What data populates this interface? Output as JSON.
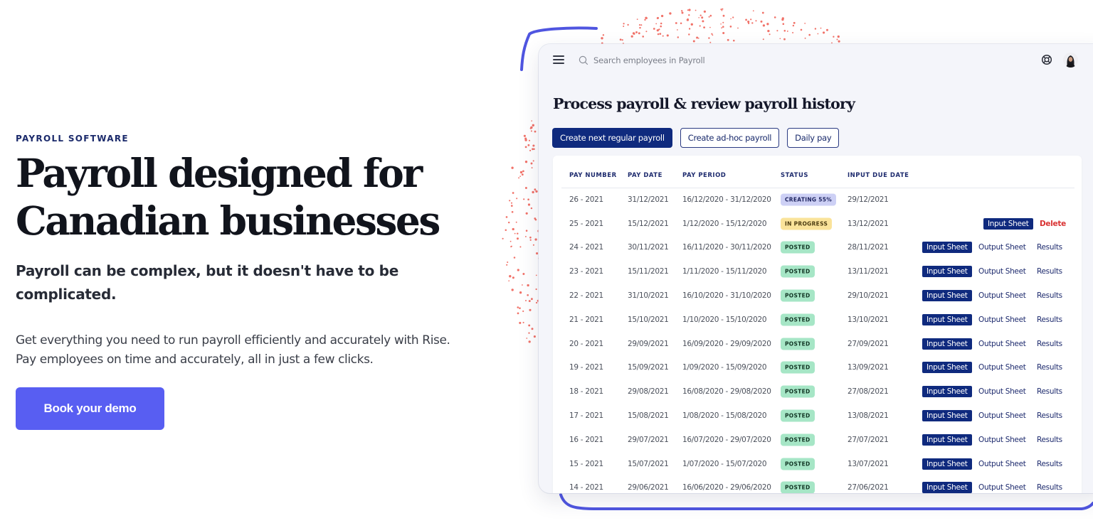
{
  "hero": {
    "eyebrow": "PAYROLL SOFTWARE",
    "headline_line1": "Payroll designed for",
    "headline_line2": "Canadian businesses",
    "subhead": "Payroll can be complex, but it doesn't have to be complicated.",
    "body_line1": "Get everything you need to run payroll efficiently and accurately with Rise.",
    "body_line2": "Pay employees on time and accurately, all in just a few clicks.",
    "cta_label": "Book your demo",
    "cta_color": "#585ef2"
  },
  "app": {
    "topbar": {
      "menu_icon": "hamburger-menu-icon",
      "search_icon": "search-icon",
      "search_placeholder": "Search employees in Payroll",
      "help_icon": "lifebuoy-help-icon",
      "avatar": "user-avatar"
    },
    "page_title": "Process payroll & review payroll history",
    "actions": {
      "create_regular": "Create next regular payroll",
      "create_adhoc": "Create ad-hoc payroll",
      "daily_pay": "Daily pay"
    },
    "table": {
      "headers": {
        "pay_number": "PAY NUMBER",
        "pay_date": "PAY DATE",
        "pay_period": "PAY PERIOD",
        "status": "STATUS",
        "input_due_date": "INPUT DUE DATE"
      },
      "action_labels": {
        "input_sheet": "Input Sheet",
        "output_sheet": "Output Sheet",
        "results": "Results",
        "delete": "Delete"
      },
      "rows": [
        {
          "pay_number": "26 - 2021",
          "pay_date": "31/12/2021",
          "pay_period": "16/12/2020 - 31/12/2020",
          "status": "CREATING 55%",
          "input_due_date": "29/12/2021"
        },
        {
          "pay_number": "25 - 2021",
          "pay_date": "15/12/2021",
          "pay_period": "1/12/2020 - 15/12/2020",
          "status": "IN PROGRESS",
          "input_due_date": "13/12/2021"
        },
        {
          "pay_number": "24 - 2021",
          "pay_date": "30/11/2021",
          "pay_period": "16/11/2020 - 30/11/2020",
          "status": "POSTED",
          "input_due_date": "28/11/2021"
        },
        {
          "pay_number": "23 - 2021",
          "pay_date": "15/11/2021",
          "pay_period": "1/11/2020 - 15/11/2020",
          "status": "POSTED",
          "input_due_date": "13/11/2021"
        },
        {
          "pay_number": "22 - 2021",
          "pay_date": "31/10/2021",
          "pay_period": "16/10/2020 - 31/10/2020",
          "status": "POSTED",
          "input_due_date": "29/10/2021"
        },
        {
          "pay_number": "21 - 2021",
          "pay_date": "15/10/2021",
          "pay_period": "1/10/2020 - 15/10/2020",
          "status": "POSTED",
          "input_due_date": "13/10/2021"
        },
        {
          "pay_number": "20 - 2021",
          "pay_date": "29/09/2021",
          "pay_period": "16/09/2020 - 29/09/2020",
          "status": "POSTED",
          "input_due_date": "27/09/2021"
        },
        {
          "pay_number": "19 - 2021",
          "pay_date": "15/09/2021",
          "pay_period": "1/09/2020 - 15/09/2020",
          "status": "POSTED",
          "input_due_date": "13/09/2021"
        },
        {
          "pay_number": "18 - 2021",
          "pay_date": "29/08/2021",
          "pay_period": "16/08/2020 - 29/08/2020",
          "status": "POSTED",
          "input_due_date": "27/08/2021"
        },
        {
          "pay_number": "17 - 2021",
          "pay_date": "15/08/2021",
          "pay_period": "1/08/2020 - 15/08/2020",
          "status": "POSTED",
          "input_due_date": "13/08/2021"
        },
        {
          "pay_number": "16 - 2021",
          "pay_date": "29/07/2021",
          "pay_period": "16/07/2020 - 29/07/2020",
          "status": "POSTED",
          "input_due_date": "27/07/2021"
        },
        {
          "pay_number": "15 - 2021",
          "pay_date": "15/07/2021",
          "pay_period": "1/07/2020 - 15/07/2020",
          "status": "POSTED",
          "input_due_date": "13/07/2021"
        },
        {
          "pay_number": "14 - 2021",
          "pay_date": "29/06/2021",
          "pay_period": "16/06/2020 - 29/06/2020",
          "status": "POSTED",
          "input_due_date": "27/06/2021"
        }
      ]
    }
  },
  "colors": {
    "brand_navy": "#0f2a7e",
    "cta_purple": "#585ef2",
    "status_creating": "#cdd0f5",
    "status_in_progress": "#fae39a",
    "status_posted": "#a6e6c6",
    "delete_red": "#d93333",
    "decoration_dots": "#ef5a4f",
    "decoration_stroke": "#4f55e0"
  }
}
